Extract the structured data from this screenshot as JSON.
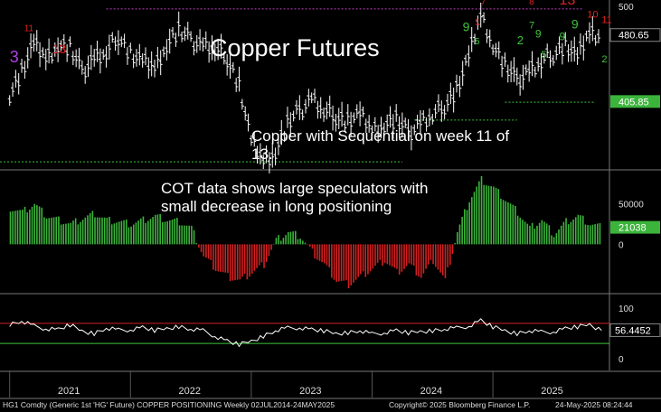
{
  "title": "Copper Futures",
  "annotations": {
    "sequential": "Copper with Sequential on week 11 of 13.",
    "cot": "COT data shows large speculators with small decrease in long positioning"
  },
  "footer": {
    "left": "HG1 Comdty (Generic 1st 'HG' Future) COPPER POSITIONING Weekly 02JUL2014-24MAY2025",
    "center": "Copyright© 2025 Bloomberg Finance L.P.",
    "right": "24-May-2025 08:24:44"
  },
  "colors": {
    "background": "#000000",
    "price_bars": "#ffffff",
    "positive": "#3cb43c",
    "negative": "#d42020",
    "seq_red": "#e02020",
    "seq_green": "#3cc43c",
    "resistance": "#c040c0",
    "support": "#3cc43c",
    "rsi_upper": "#d42020",
    "rsi_lower": "#3cc43c"
  },
  "chart_data": [
    {
      "type": "line",
      "name": "price",
      "x_axis": [
        "2021",
        "2022",
        "2023",
        "2024",
        "2025"
      ],
      "ytick_labels": [
        "500"
      ],
      "ylim": [
        330,
        520
      ],
      "last_value_labels": [
        "480.65",
        "405.85"
      ],
      "sequential_labels": [
        "11",
        "3",
        "13",
        "9",
        "7",
        "1",
        "8",
        "2",
        "5",
        "7",
        "9",
        "5",
        "9",
        "13",
        "9",
        "10",
        "11",
        "2"
      ],
      "x": [
        2020.5,
        2020.6,
        2020.7,
        2020.8,
        2020.9,
        2021.0,
        2021.1,
        2021.2,
        2021.3,
        2021.4,
        2021.5,
        2021.6,
        2021.7,
        2021.8,
        2021.9,
        2022.0,
        2022.1,
        2022.2,
        2022.3,
        2022.4,
        2022.5,
        2022.6,
        2022.7,
        2022.8,
        2022.9,
        2023.0,
        2023.1,
        2023.2,
        2023.3,
        2023.4,
        2023.5,
        2023.6,
        2023.7,
        2023.8,
        2023.9,
        2024.0,
        2024.1,
        2024.2,
        2024.3,
        2024.4,
        2024.5,
        2024.6,
        2024.7,
        2024.8,
        2024.9,
        2025.0,
        2025.1,
        2025.2,
        2025.3,
        2025.4
      ],
      "y": [
        415,
        440,
        470,
        455,
        470,
        465,
        440,
        455,
        460,
        480,
        460,
        450,
        445,
        470,
        485,
        475,
        470,
        465,
        455,
        425,
        360,
        340,
        350,
        380,
        395,
        410,
        395,
        390,
        385,
        390,
        375,
        380,
        385,
        370,
        382,
        390,
        402,
        420,
        455,
        505,
        470,
        445,
        430,
        440,
        450,
        460,
        470,
        455,
        485,
        480
      ]
    },
    {
      "type": "bar",
      "name": "COT large speculators",
      "ytick_labels": [
        "50000",
        "0"
      ],
      "ylim": [
        -60000,
        90000
      ],
      "last_value_label": "21038",
      "x": [
        2020.5,
        2020.6,
        2020.7,
        2020.8,
        2020.9,
        2021.0,
        2021.1,
        2021.2,
        2021.3,
        2021.4,
        2021.5,
        2021.6,
        2021.7,
        2021.8,
        2021.9,
        2022.0,
        2022.1,
        2022.2,
        2022.3,
        2022.4,
        2022.5,
        2022.6,
        2022.7,
        2022.8,
        2022.9,
        2023.0,
        2023.1,
        2023.2,
        2023.3,
        2023.4,
        2023.5,
        2023.6,
        2023.7,
        2023.8,
        2023.9,
        2024.0,
        2024.1,
        2024.2,
        2024.3,
        2024.4,
        2024.5,
        2024.6,
        2024.7,
        2024.8,
        2024.9,
        2025.0,
        2025.1,
        2025.2,
        2025.3,
        2025.4
      ],
      "values": [
        45000,
        40000,
        50000,
        35000,
        30000,
        25000,
        32000,
        38000,
        30000,
        28000,
        25000,
        30000,
        35000,
        30000,
        28000,
        20000,
        -15000,
        -30000,
        -40000,
        -45000,
        -35000,
        -25000,
        5000,
        15000,
        10000,
        -10000,
        -25000,
        -45000,
        -50000,
        -40000,
        -30000,
        -20000,
        -35000,
        -25000,
        -40000,
        -20000,
        -45000,
        15000,
        55000,
        80000,
        70000,
        55000,
        40000,
        20000,
        30000,
        12000,
        28000,
        35000,
        25000,
        21038
      ]
    },
    {
      "type": "line",
      "name": "RSI",
      "ytick_labels": [
        "100",
        "0"
      ],
      "ylim": [
        0,
        100
      ],
      "upper_level": 70,
      "lower_level": 30,
      "last_value_label": "56.4452",
      "x": [
        2020.5,
        2020.6,
        2020.7,
        2020.8,
        2020.9,
        2021.0,
        2021.1,
        2021.2,
        2021.3,
        2021.4,
        2021.5,
        2021.6,
        2021.7,
        2021.8,
        2021.9,
        2022.0,
        2022.1,
        2022.2,
        2022.3,
        2022.4,
        2022.5,
        2022.6,
        2022.7,
        2022.8,
        2022.9,
        2023.0,
        2023.1,
        2023.2,
        2023.3,
        2023.4,
        2023.5,
        2023.6,
        2023.7,
        2023.8,
        2023.9,
        2024.0,
        2024.1,
        2024.2,
        2024.3,
        2024.4,
        2024.5,
        2024.6,
        2024.7,
        2024.8,
        2024.9,
        2025.0,
        2025.1,
        2025.2,
        2025.3,
        2025.4
      ],
      "y": [
        68,
        74,
        64,
        60,
        58,
        66,
        55,
        50,
        60,
        56,
        58,
        62,
        55,
        60,
        64,
        58,
        55,
        45,
        35,
        27,
        35,
        45,
        55,
        60,
        62,
        58,
        54,
        50,
        52,
        55,
        48,
        52,
        56,
        50,
        54,
        56,
        58,
        60,
        65,
        76,
        62,
        56,
        50,
        55,
        52,
        54,
        60,
        62,
        68,
        56
      ]
    }
  ]
}
